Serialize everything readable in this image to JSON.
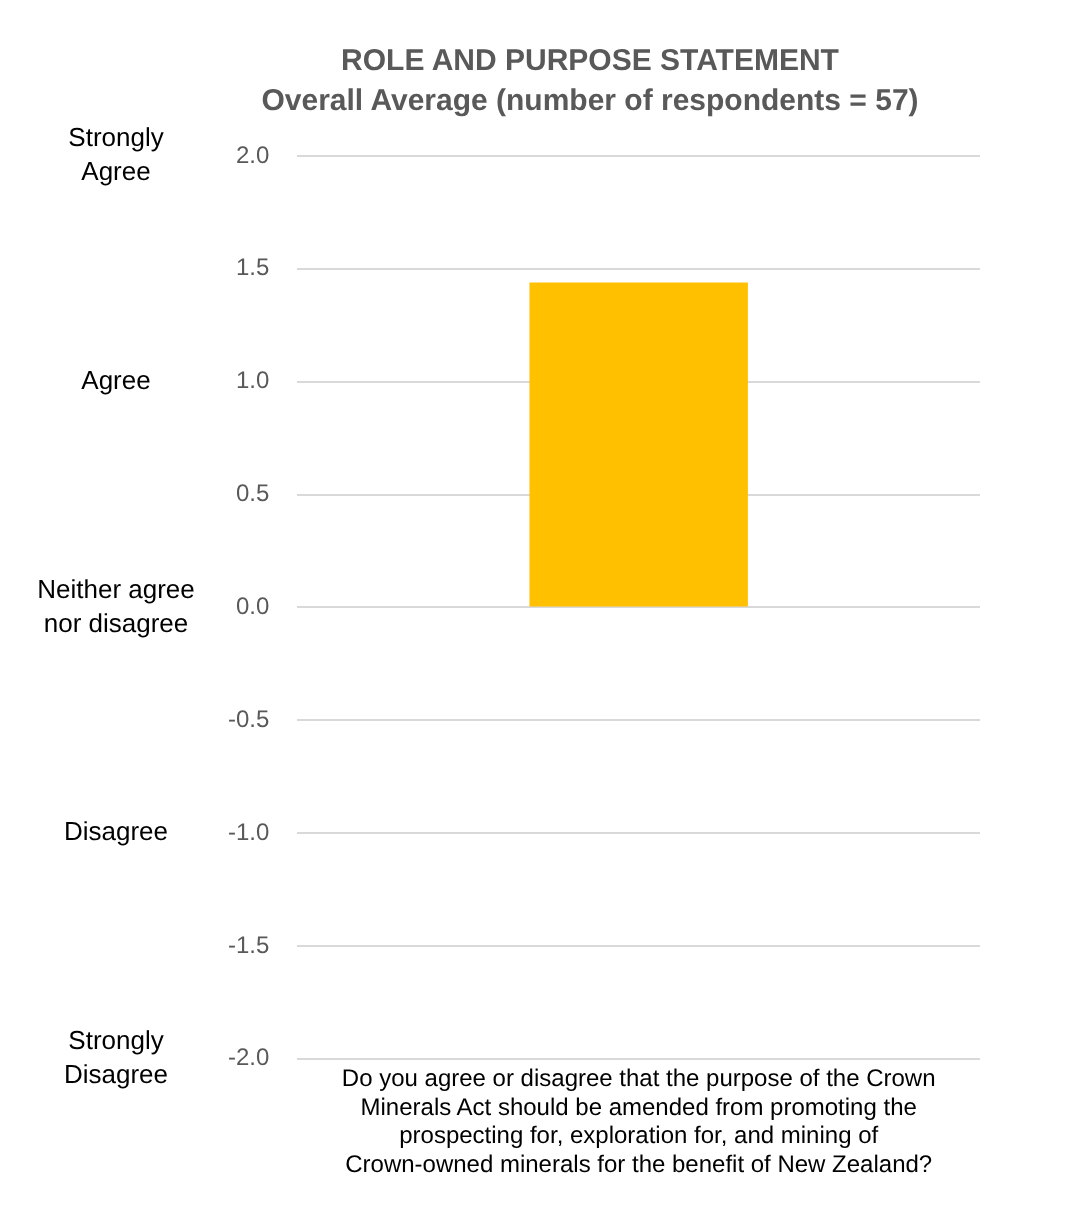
{
  "chart_data": {
    "type": "bar",
    "title": "ROLE AND PURPOSE STATEMENT",
    "subtitle": "Overall Average (number of respondents = 57)",
    "categories": [
      "Do you agree or disagree that the purpose of the Crown Minerals Act should be amended from promoting the prospecting for, exploration for, and mining of Crown-owned minerals for the benefit of New Zealand?"
    ],
    "values": [
      1.44
    ],
    "color": "#ffc000",
    "ylim": [
      -2,
      2
    ],
    "yticks": [
      {
        "value": -2,
        "label": "-2.0"
      },
      -1.5,
      {
        "value": -1,
        "label": "-1.0"
      },
      -0.5,
      {
        "value": 0,
        "label": "0.0"
      },
      0.5,
      {
        "value": 1,
        "label": "1.0"
      },
      1.5,
      {
        "value": 2,
        "label": "2.0"
      }
    ],
    "grid": "y",
    "annotations": [
      "Strongly Agree",
      "Agree",
      "Neither agree nor disagree",
      "Disagree",
      "Strongly Disagree"
    ]
  }
}
